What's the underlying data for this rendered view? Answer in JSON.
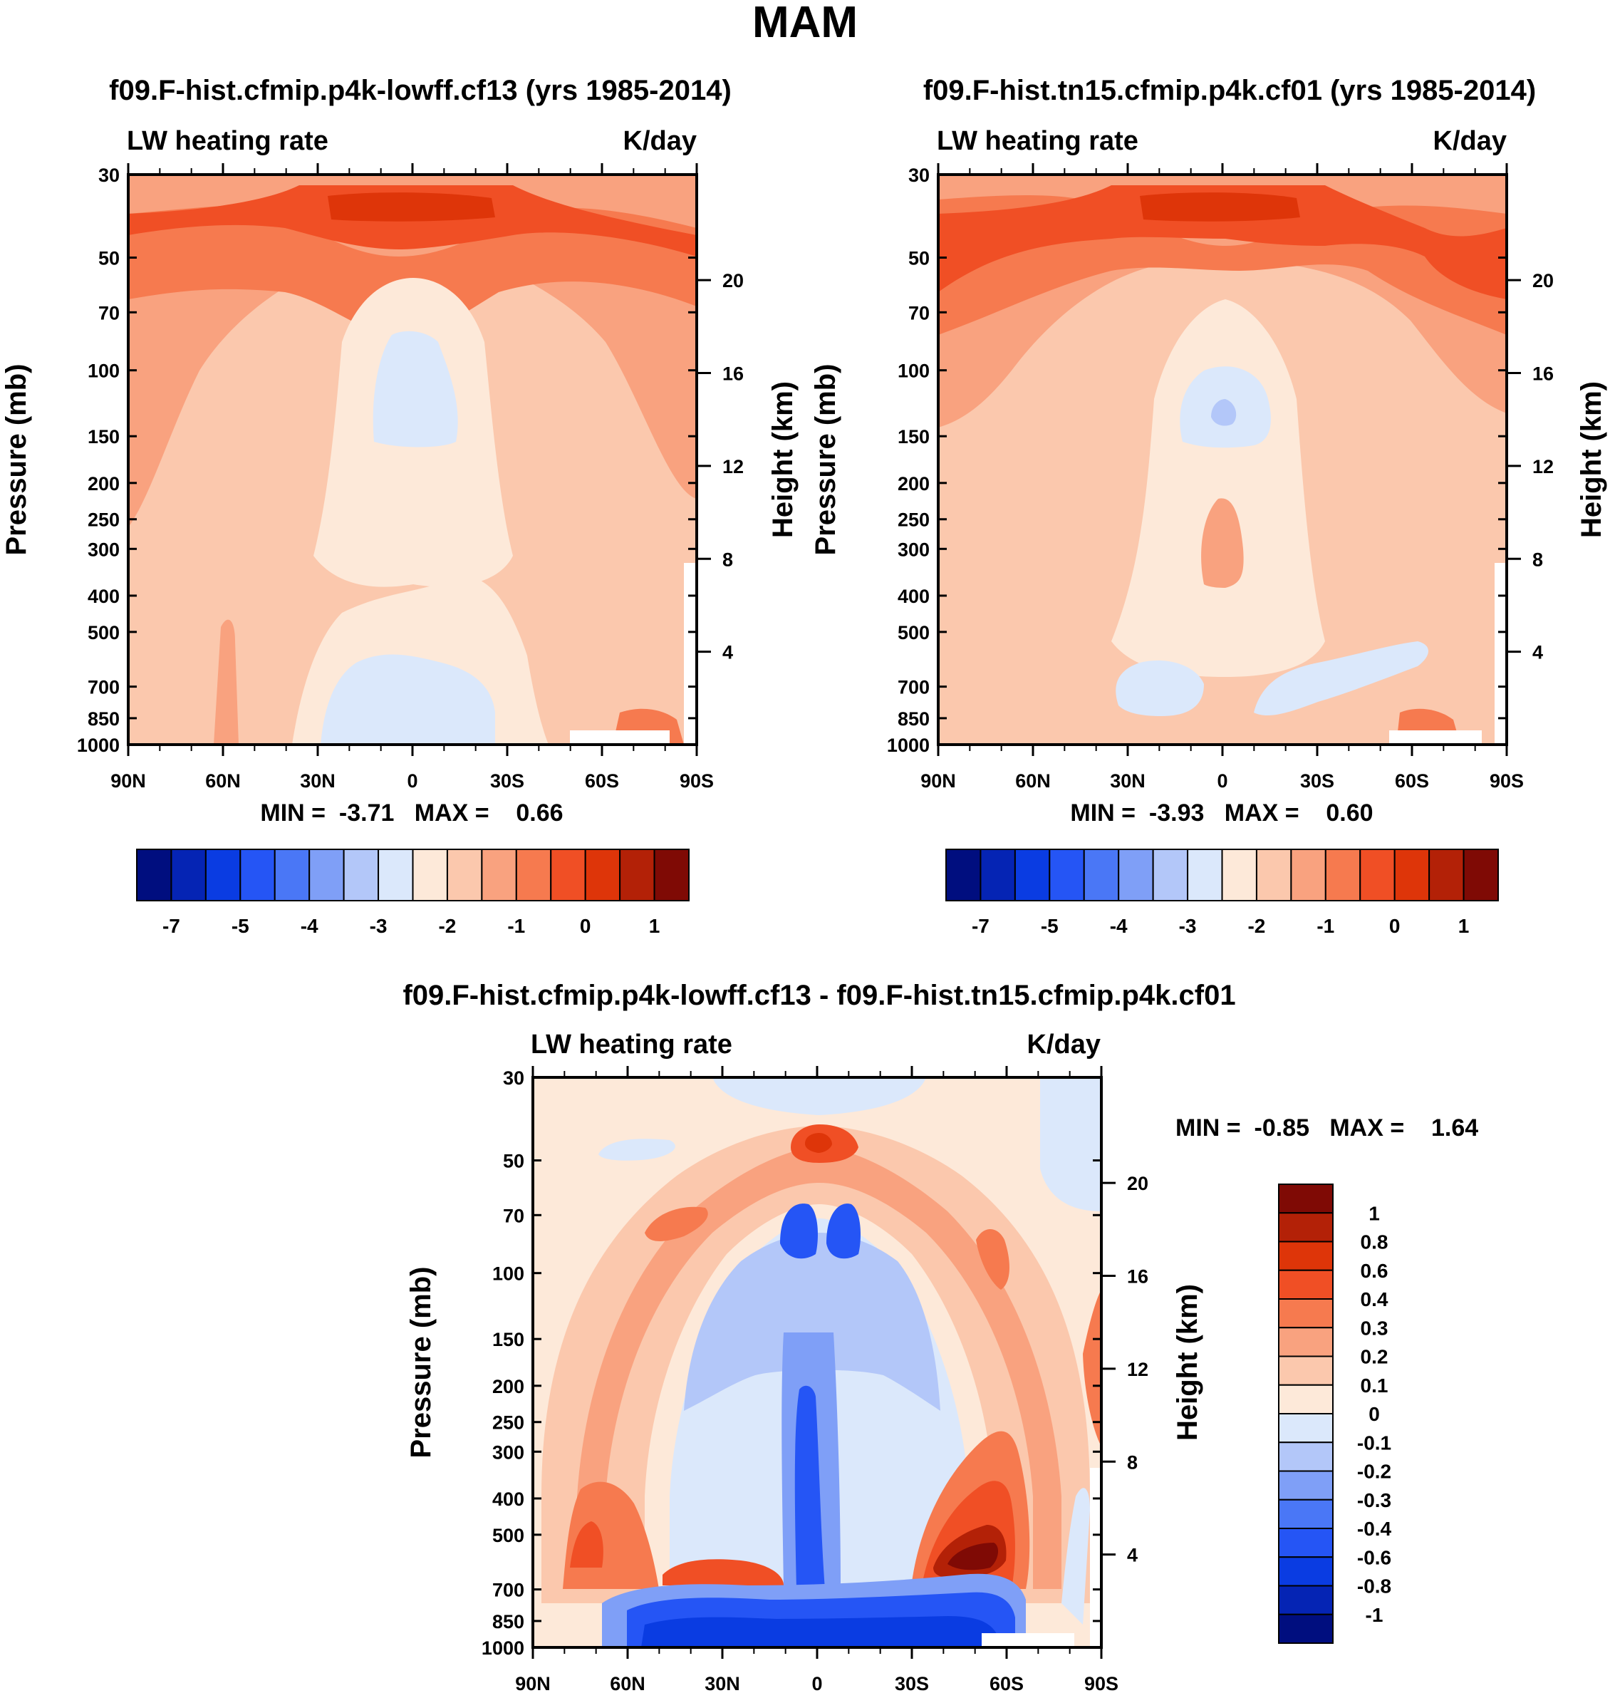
{
  "figure_title": "MAM",
  "colors": {
    "abs_scale": [
      "#000e7f",
      "#0524b4",
      "#0a3ce2",
      "#2555f5",
      "#4a77f6",
      "#7f9ff7",
      "#b3c7f9",
      "#dbe8fb",
      "#fde9d9",
      "#fbc8ad",
      "#f9a27f",
      "#f67a4f",
      "#f04f25",
      "#de3509",
      "#b32107",
      "#7f0a05"
    ],
    "diff_scale": [
      "#000e7f",
      "#0524b4",
      "#0a3ce2",
      "#2555f5",
      "#4a77f6",
      "#7f9ff7",
      "#b3c7f9",
      "#dbe8fb",
      "#fde9d9",
      "#fbc8ad",
      "#f9a27f",
      "#f67a4f",
      "#f04f25",
      "#de3509",
      "#b32107",
      "#7f0a05"
    ]
  },
  "chart_data": [
    {
      "type": "heatmap",
      "title": "f09.F-hist.cfmip.p4k-lowff.cf13 (yrs 1985-2014)",
      "left_label": "LW heating rate",
      "right_label": "K/day",
      "ylabel": "Pressure (mb)",
      "ylabel_right": "Height (km)",
      "xticks": [
        "90N",
        "60N",
        "30N",
        "0",
        "30S",
        "60S",
        "90S"
      ],
      "yticks": [
        "30",
        "50",
        "70",
        "100",
        "150",
        "200",
        "250",
        "300",
        "400",
        "500",
        "700",
        "850",
        "1000"
      ],
      "height_ticks": [
        "20",
        "16",
        "12",
        "8",
        "4"
      ],
      "stats_text": "MIN =  -3.71   MAX =    0.66",
      "colorbar_labels": [
        "-7",
        "-5",
        "-4",
        "-3",
        "-2",
        "-1",
        "0",
        "1"
      ],
      "x": [
        -90,
        -60,
        -30,
        0,
        30,
        60,
        90
      ],
      "ylim": [
        1000,
        30
      ],
      "zones": [
        {
          "lat_range": [
            -90,
            90
          ],
          "p_range": [
            30,
            70
          ],
          "value": -1.0
        },
        {
          "lat_range": [
            -90,
            90
          ],
          "p_range": [
            70,
            300
          ],
          "value": -1.5
        },
        {
          "lat_range": [
            -20,
            20
          ],
          "p_range": [
            300,
            700
          ],
          "value": -2.5
        },
        {
          "lat_range": [
            -90,
            90
          ],
          "p_range": [
            300,
            1000
          ],
          "value": -2.0
        }
      ],
      "min": -3.71,
      "max": 0.66
    },
    {
      "type": "heatmap",
      "title": "f09.F-hist.tn15.cfmip.p4k.cf01 (yrs 1985-2014)",
      "left_label": "LW heating rate",
      "right_label": "K/day",
      "ylabel": "Pressure (mb)",
      "ylabel_right": "Height (km)",
      "xticks": [
        "90N",
        "60N",
        "30N",
        "0",
        "30S",
        "60S",
        "90S"
      ],
      "yticks": [
        "30",
        "50",
        "70",
        "100",
        "150",
        "200",
        "250",
        "300",
        "400",
        "500",
        "700",
        "850",
        "1000"
      ],
      "height_ticks": [
        "20",
        "16",
        "12",
        "8",
        "4"
      ],
      "stats_text": "MIN =  -3.93   MAX =    0.60",
      "colorbar_labels": [
        "-7",
        "-5",
        "-4",
        "-3",
        "-2",
        "-1",
        "0",
        "1"
      ],
      "x": [
        -90,
        -60,
        -30,
        0,
        30,
        60,
        90
      ],
      "ylim": [
        1000,
        30
      ],
      "min": -3.93,
      "max": 0.6
    },
    {
      "type": "heatmap",
      "title": "f09.F-hist.cfmip.p4k-lowff.cf13 - f09.F-hist.tn15.cfmip.p4k.cf01",
      "left_label": "LW heating rate",
      "right_label": "K/day",
      "ylabel": "Pressure (mb)",
      "ylabel_right": "Height (km)",
      "xticks": [
        "90N",
        "60N",
        "30N",
        "0",
        "30S",
        "60S",
        "90S"
      ],
      "yticks": [
        "30",
        "50",
        "70",
        "100",
        "150",
        "200",
        "250",
        "300",
        "400",
        "500",
        "700",
        "850",
        "1000"
      ],
      "height_ticks": [
        "20",
        "16",
        "12",
        "8",
        "4"
      ],
      "stats_text": "MIN =  -0.85   MAX =    1.64",
      "colorbar_labels": [
        "1",
        "0.8",
        "0.6",
        "0.4",
        "0.3",
        "0.2",
        "0.1",
        "0",
        "-0.1",
        "-0.2",
        "-0.3",
        "-0.4",
        "-0.6",
        "-0.8",
        "-1"
      ],
      "x": [
        -90,
        -60,
        -30,
        0,
        30,
        60,
        90
      ],
      "ylim": [
        1000,
        30
      ],
      "min": -0.85,
      "max": 1.64
    }
  ]
}
